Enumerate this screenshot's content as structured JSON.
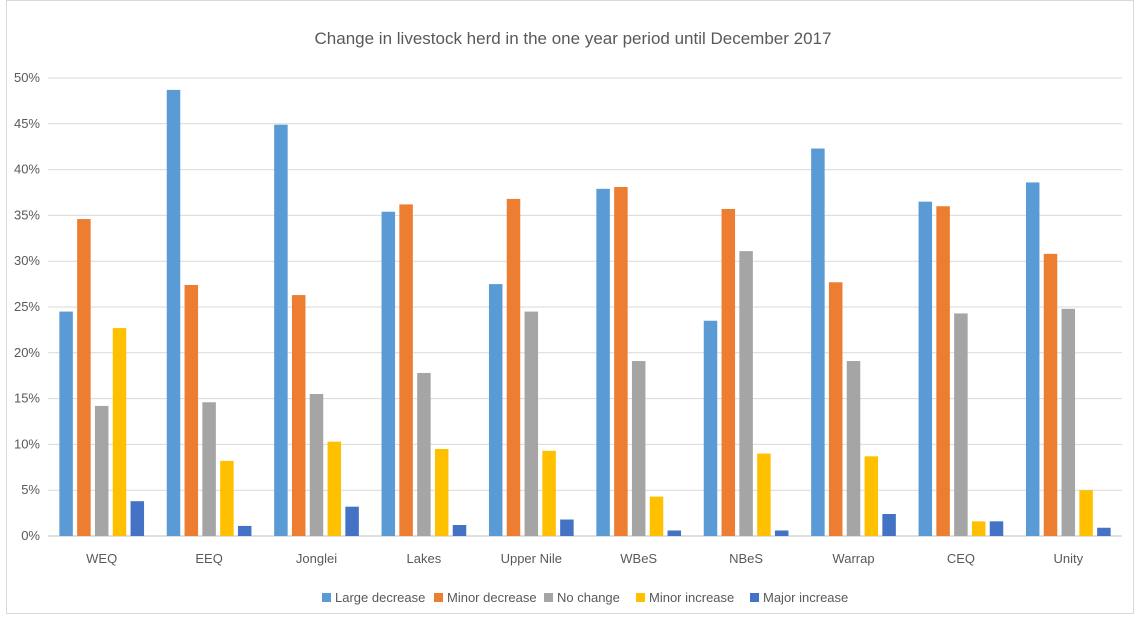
{
  "chart_data": {
    "type": "bar",
    "title": "Change in livestock herd in the one year period until December 2017",
    "xlabel": "",
    "ylabel": "",
    "ylim": [
      0,
      50
    ],
    "yticks": [
      "0%",
      "5%",
      "10%",
      "15%",
      "20%",
      "25%",
      "30%",
      "35%",
      "40%",
      "45%",
      "50%"
    ],
    "grid": true,
    "legend_position": "bottom",
    "categories": [
      "WEQ",
      "EEQ",
      "Jonglei",
      "Lakes",
      "Upper Nile",
      "WBeS",
      "NBeS",
      "Warrap",
      "CEQ",
      "Unity"
    ],
    "series": [
      {
        "name": "Large decrease",
        "color": "#5b9bd5",
        "values": [
          24.5,
          48.7,
          44.9,
          35.4,
          27.5,
          37.9,
          23.5,
          42.3,
          36.5,
          38.6
        ]
      },
      {
        "name": "Minor decrease",
        "color": "#ed7d31",
        "values": [
          34.6,
          27.4,
          26.3,
          36.2,
          36.8,
          38.1,
          35.7,
          27.7,
          36.0,
          30.8
        ]
      },
      {
        "name": "No change",
        "color": "#a5a5a5",
        "values": [
          14.2,
          14.6,
          15.5,
          17.8,
          24.5,
          19.1,
          31.1,
          19.1,
          24.3,
          24.8
        ]
      },
      {
        "name": "Minor increase",
        "color": "#ffc000",
        "values": [
          22.7,
          8.2,
          10.3,
          9.5,
          9.3,
          4.3,
          9.0,
          8.7,
          1.6,
          5.0
        ]
      },
      {
        "name": "Major increase",
        "color": "#4472c4",
        "values": [
          3.8,
          1.1,
          3.2,
          1.2,
          1.8,
          0.6,
          0.6,
          2.4,
          1.6,
          0.9
        ]
      }
    ]
  }
}
